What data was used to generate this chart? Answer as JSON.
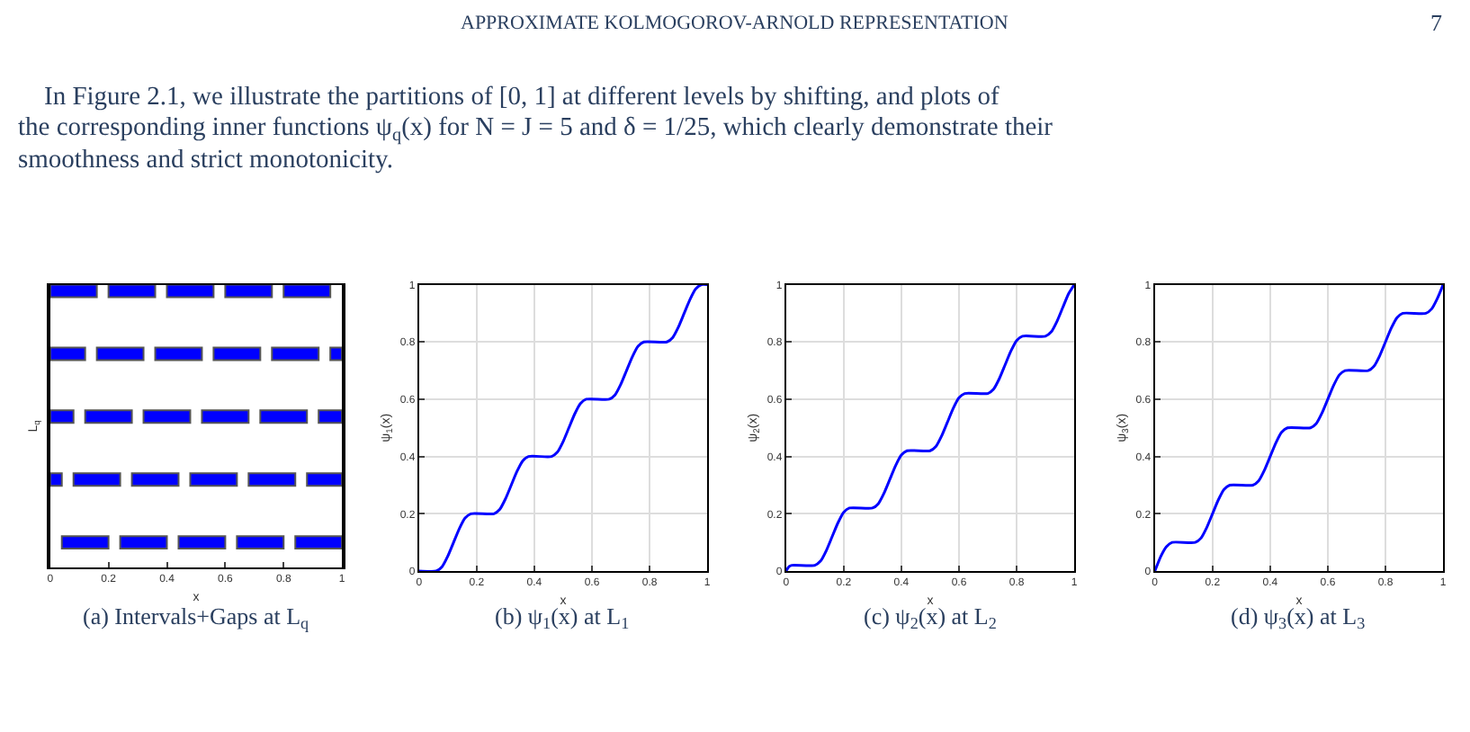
{
  "chart_data": [
    {
      "type": "other",
      "title": "APPROXIMATE KOLMOGOROV-ARNOLD REPRESENTATION",
      "annotations": [
        "7",
        "In Figure 2.1, we illustrate the partitions of [0, 1] at different levels by shifting, and plots of the corresponding inner functions ψ$_{q}$(x) for N = J = 5 and δ = 1/25, which clearly demonstrate their smoothness and strict monotonicity."
      ]
    },
    {
      "type": "bar",
      "orientation": "horizontal",
      "categories": [
        null,
        null,
        null,
        null,
        null
      ],
      "xlabel": "x",
      "ylabel": "L$_{q}$",
      "xlim": [
        0,
        1
      ],
      "xticks": [
        0,
        0.2,
        0.4,
        0.6,
        0.8,
        1
      ],
      "tick_labels": "x",
      "grid": false,
      "annotations": [
        "(a) Intervals+Gaps at L$_{q}$"
      ],
      "series": [
        {
          "color": "#0000ff",
          "base": [
            0,
            0,
            0,
            0,
            0.04
          ],
          "values": [
            0.16,
            0.12,
            0.08,
            0.04,
            0.16
          ]
        },
        {
          "color": "#0000ff",
          "base": [
            0.2,
            0.16,
            0.12,
            0.08,
            0.24
          ],
          "values": [
            0.16,
            0.16,
            0.16,
            0.16,
            0.16
          ]
        },
        {
          "color": "#0000ff",
          "base": [
            0.4,
            0.36,
            0.32,
            0.28,
            0.44
          ],
          "values": [
            0.16,
            0.16,
            0.16,
            0.16,
            0.16
          ]
        },
        {
          "color": "#0000ff",
          "base": [
            0.6,
            0.56,
            0.52,
            0.48,
            0.64
          ],
          "values": [
            0.16,
            0.16,
            0.16,
            0.16,
            0.16
          ]
        },
        {
          "color": "#0000ff",
          "base": [
            0.8,
            0.76,
            0.72,
            0.68,
            0.84
          ],
          "values": [
            0.16,
            0.16,
            0.16,
            0.16,
            0.16
          ]
        },
        {
          "color": "#0000ff",
          "base": [
            null,
            0.96,
            0.92,
            0.88,
            null
          ],
          "values": [
            null,
            0.04,
            0.08,
            0.12,
            null
          ]
        }
      ]
    },
    {
      "type": "line",
      "xlabel": "x",
      "ylabel": "ψ$_{1}$(x)",
      "xlim": [
        0,
        1
      ],
      "xticks": [
        0,
        0.2,
        0.4,
        0.6,
        0.8,
        1
      ],
      "ylim": [
        0,
        1
      ],
      "yticks": [
        0,
        0.2,
        0.4,
        0.6,
        0.8,
        1
      ],
      "grid": true,
      "annotations": [
        "(b) ψ$_{1}$(x) at L$_{1}$"
      ],
      "series": [
        {
          "color": "#0000ff",
          "x": [
            0,
            0.06,
            0.08,
            0.1,
            0.12,
            0.14,
            0.16,
            0.18,
            0.26,
            0.28,
            0.3,
            0.32,
            0.34,
            0.36,
            0.38,
            0.46,
            0.48,
            0.5,
            0.52,
            0.54,
            0.56,
            0.58,
            0.66,
            0.68,
            0.7,
            0.72,
            0.74,
            0.76,
            0.78,
            0.86,
            0.88,
            0.9,
            0.92,
            0.94,
            0.96,
            0.98,
            1
          ],
          "values": [
            0,
            0,
            0.015,
            0.052,
            0.1,
            0.148,
            0.185,
            0.2,
            0.2,
            0.215,
            0.252,
            0.3,
            0.348,
            0.385,
            0.4,
            0.4,
            0.415,
            0.452,
            0.5,
            0.548,
            0.585,
            0.6,
            0.6,
            0.615,
            0.652,
            0.7,
            0.748,
            0.785,
            0.8,
            0.8,
            0.815,
            0.852,
            0.9,
            0.948,
            0.985,
            1,
            1
          ]
        }
      ]
    },
    {
      "type": "line",
      "xlabel": "x",
      "ylabel": "ψ$_{2}$(x)",
      "xlim": [
        0,
        1
      ],
      "xticks": [
        0,
        0.2,
        0.4,
        0.6,
        0.8,
        1
      ],
      "ylim": [
        0,
        1
      ],
      "yticks": [
        0,
        0.2,
        0.4,
        0.6,
        0.8,
        1
      ],
      "grid": true,
      "annotations": [
        "(c) ψ$_{2}$(x) at L$_{2}$"
      ],
      "series": [
        {
          "color": "#0000ff",
          "x": [
            0,
            0.01,
            0.02,
            0.1,
            0.12,
            0.14,
            0.16,
            0.18,
            0.2,
            0.22,
            0.3,
            0.32,
            0.34,
            0.36,
            0.38,
            0.4,
            0.42,
            0.5,
            0.52,
            0.54,
            0.56,
            0.58,
            0.6,
            0.62,
            0.7,
            0.72,
            0.74,
            0.76,
            0.78,
            0.8,
            0.82,
            0.9,
            0.92,
            0.94,
            0.96,
            0.98,
            1
          ],
          "values": [
            0,
            0.015,
            0.02,
            0.02,
            0.035,
            0.072,
            0.12,
            0.168,
            0.205,
            0.22,
            0.22,
            0.235,
            0.272,
            0.32,
            0.368,
            0.405,
            0.42,
            0.42,
            0.435,
            0.472,
            0.52,
            0.568,
            0.605,
            0.62,
            0.62,
            0.635,
            0.672,
            0.72,
            0.768,
            0.805,
            0.82,
            0.82,
            0.835,
            0.872,
            0.92,
            0.968,
            1
          ]
        }
      ]
    },
    {
      "type": "line",
      "xlabel": "x",
      "ylabel": "ψ$_{3}$(x)",
      "xlim": [
        0,
        1
      ],
      "xticks": [
        0,
        0.2,
        0.4,
        0.6,
        0.8,
        1
      ],
      "ylim": [
        0,
        1
      ],
      "yticks": [
        0,
        0.2,
        0.4,
        0.6,
        0.8,
        1
      ],
      "grid": true,
      "annotations": [
        "(d) ψ$_{3}$(x) at L$_{3}$"
      ],
      "series": [
        {
          "color": "#0000ff",
          "x": [
            0,
            0.02,
            0.04,
            0.06,
            0.14,
            0.16,
            0.18,
            0.2,
            0.22,
            0.24,
            0.26,
            0.34,
            0.36,
            0.38,
            0.4,
            0.42,
            0.44,
            0.46,
            0.54,
            0.56,
            0.58,
            0.6,
            0.62,
            0.64,
            0.66,
            0.74,
            0.76,
            0.78,
            0.8,
            0.82,
            0.84,
            0.86,
            0.94,
            0.96,
            0.98,
            1
          ],
          "values": [
            0,
            0.05,
            0.085,
            0.1,
            0.1,
            0.115,
            0.152,
            0.2,
            0.248,
            0.285,
            0.3,
            0.3,
            0.315,
            0.352,
            0.4,
            0.448,
            0.485,
            0.5,
            0.5,
            0.515,
            0.552,
            0.6,
            0.648,
            0.685,
            0.7,
            0.7,
            0.715,
            0.752,
            0.8,
            0.848,
            0.885,
            0.9,
            0.9,
            0.915,
            0.952,
            1
          ]
        }
      ]
    }
  ]
}
